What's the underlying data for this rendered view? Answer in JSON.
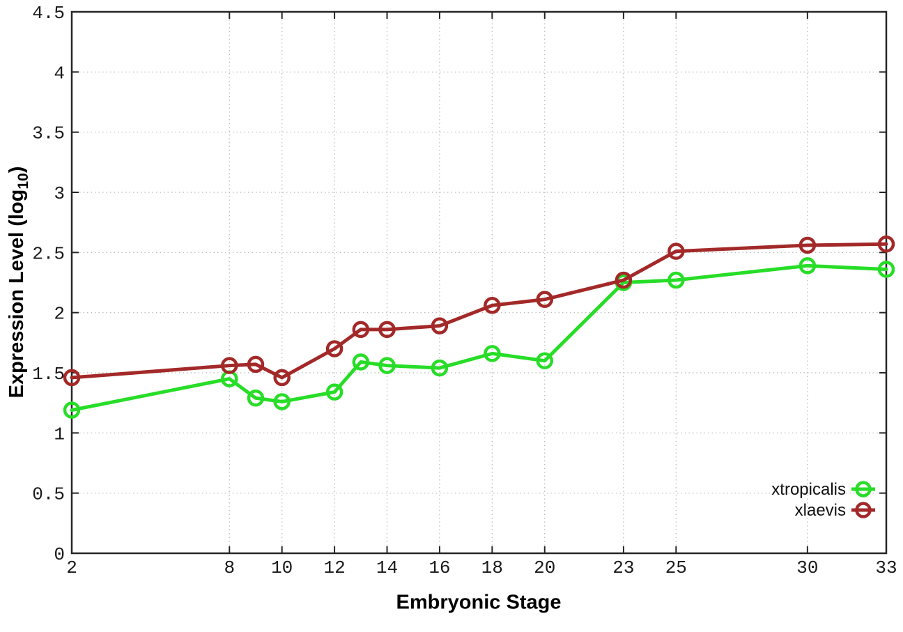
{
  "chart_data": {
    "type": "line",
    "title": "",
    "xlabel": "Embryonic Stage",
    "ylabel": {
      "pre": "Expression Level (log",
      "sub": "10",
      "post": ")"
    },
    "xlim": [
      2,
      33
    ],
    "ylim": [
      0,
      4.5
    ],
    "grid": true,
    "legend_position": "inside-bottom-right",
    "x_tick_values": [
      2,
      8,
      10,
      12,
      14,
      16,
      18,
      20,
      23,
      25,
      30,
      33
    ],
    "x_tick_labels": [
      "2",
      "8",
      "10",
      "12",
      "14",
      "16",
      "18",
      "20",
      "23",
      "25",
      "30",
      "33"
    ],
    "y_tick_values": [
      0,
      0.5,
      1,
      1.5,
      2,
      2.5,
      3,
      3.5,
      4,
      4.5
    ],
    "y_tick_labels": [
      "0",
      "0.5",
      "1",
      "1.5",
      "2",
      "2.5",
      "3",
      "3.5",
      "4",
      "4.5"
    ],
    "x": [
      2,
      8,
      9,
      10,
      12,
      13,
      14,
      16,
      18,
      20,
      23,
      25,
      30,
      33
    ],
    "series": [
      {
        "name": "xtropicalis",
        "color": "#27dd27",
        "values": [
          1.19,
          1.45,
          1.29,
          1.26,
          1.34,
          1.59,
          1.56,
          1.54,
          1.66,
          1.6,
          2.25,
          2.27,
          2.39,
          2.36
        ]
      },
      {
        "name": "xlaevis",
        "color": "#a32929",
        "values": [
          1.46,
          1.56,
          1.57,
          1.46,
          1.7,
          1.86,
          1.86,
          1.89,
          2.06,
          2.11,
          2.27,
          2.51,
          2.56,
          2.57
        ]
      }
    ]
  },
  "colors": {
    "frame": "#262626",
    "grid": "#b5b5b5",
    "tick_text": "#1a1a1a",
    "legend_text": "#111111",
    "background": "#ffffff"
  }
}
